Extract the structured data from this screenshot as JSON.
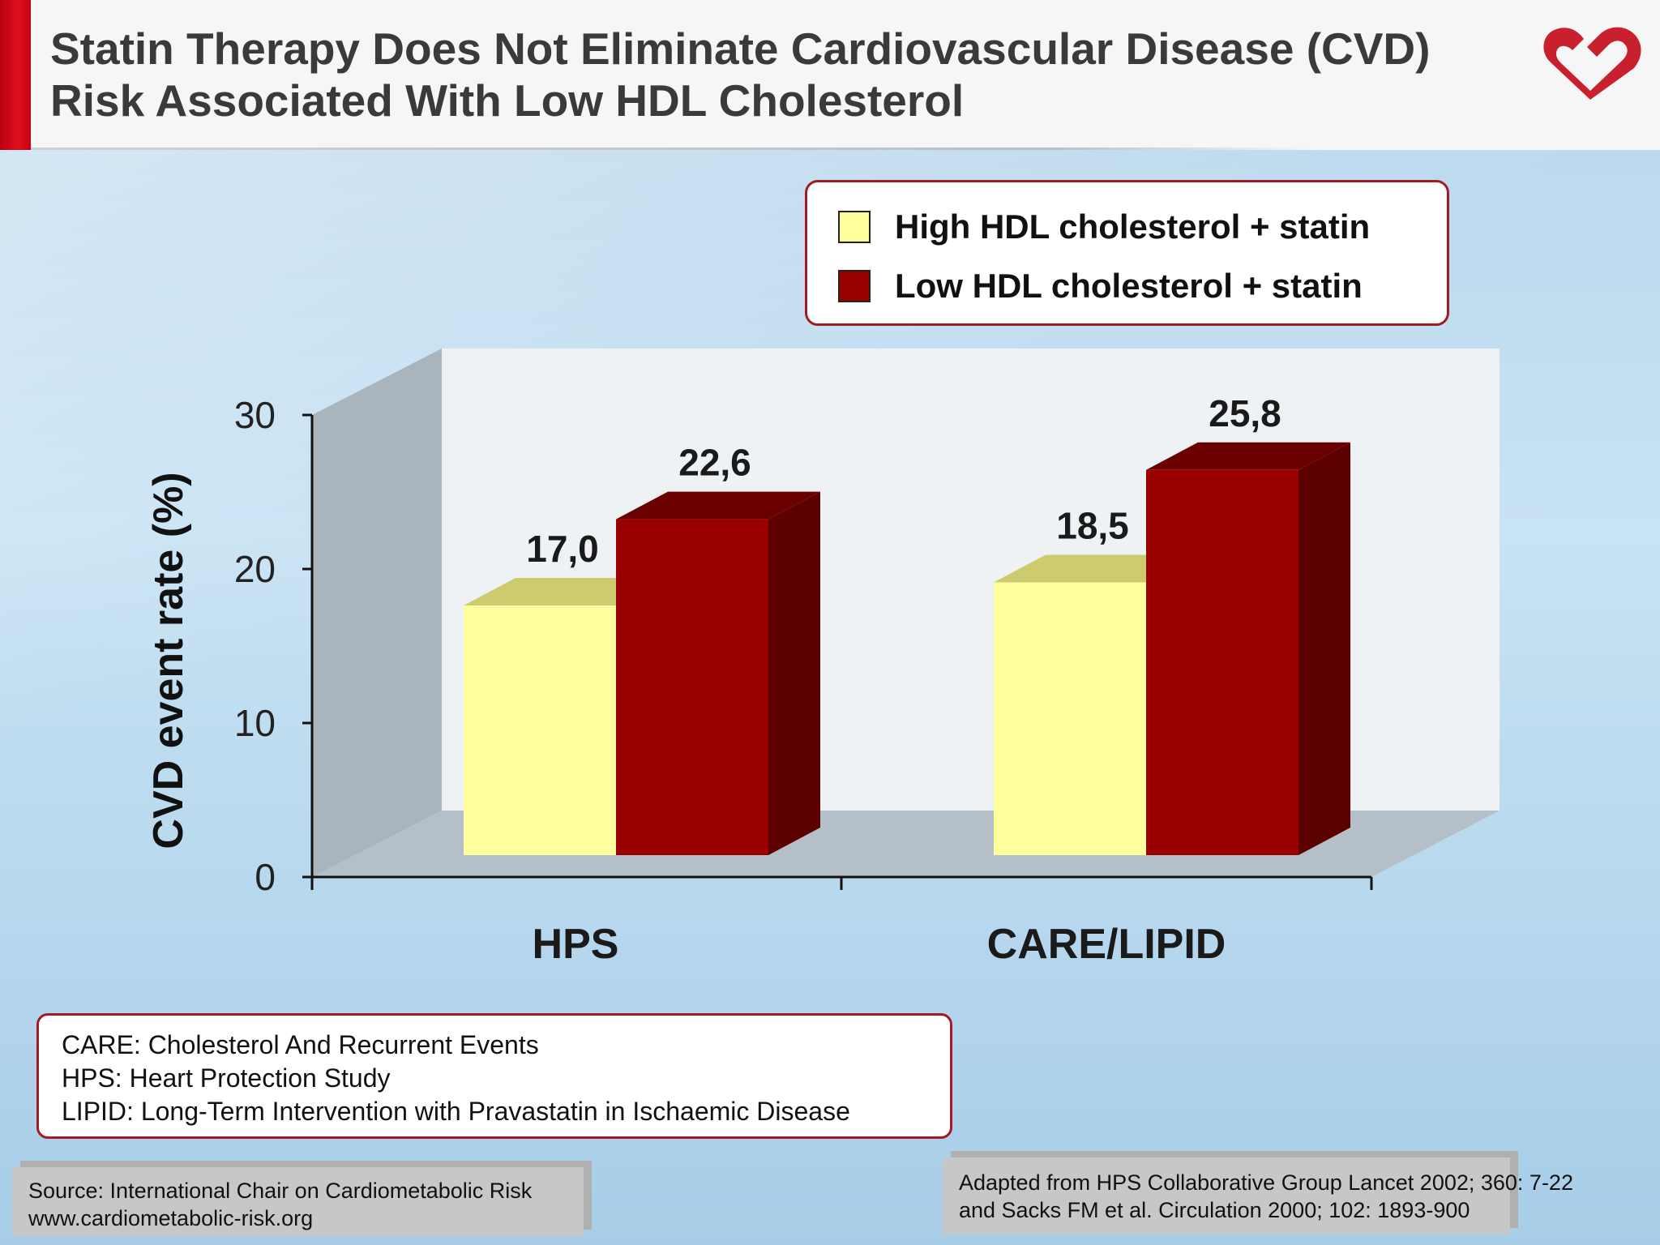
{
  "header": {
    "title_line1": "Statin Therapy Does Not Eliminate Cardiovascular Disease (CVD)",
    "title_line2": "Risk Associated With Low HDL Cholesterol",
    "logo_icon": "heart-check-logo-icon"
  },
  "colors": {
    "accent": "#a31a22",
    "high_hdl": "#ffff9e",
    "low_hdl": "#9b0000"
  },
  "chart_data": {
    "type": "bar",
    "categories": [
      "HPS",
      "CARE/LIPID"
    ],
    "series": [
      {
        "name": "High HDL cholesterol + statin",
        "values": [
          17.0,
          18.5
        ],
        "labels": [
          "17,0",
          "18,5"
        ]
      },
      {
        "name": "Low HDL cholesterol + statin",
        "values": [
          22.6,
          25.8
        ],
        "labels": [
          "22,6",
          "25,8"
        ]
      }
    ],
    "ylabel": "CVD event rate (%)",
    "ylim": [
      0,
      30
    ],
    "yticks": [
      "0",
      "10",
      "20",
      "30"
    ],
    "legend_position": "top-right",
    "style": "3d"
  },
  "abbreviations": [
    "CARE: Cholesterol And Recurrent Events",
    "HPS: Heart Protection Study",
    "LIPID: Long-Term Intervention with Pravastatin in Ischaemic Disease"
  ],
  "source": {
    "line1": "Source: International Chair on Cardiometabolic Risk",
    "line2": "www.cardiometabolic-risk.org"
  },
  "reference": {
    "line1": "Adapted from HPS Collaborative Group Lancet 2002; 360: 7-22",
    "line2": "and Sacks FM et al. Circulation 2000; 102: 1893-900"
  }
}
